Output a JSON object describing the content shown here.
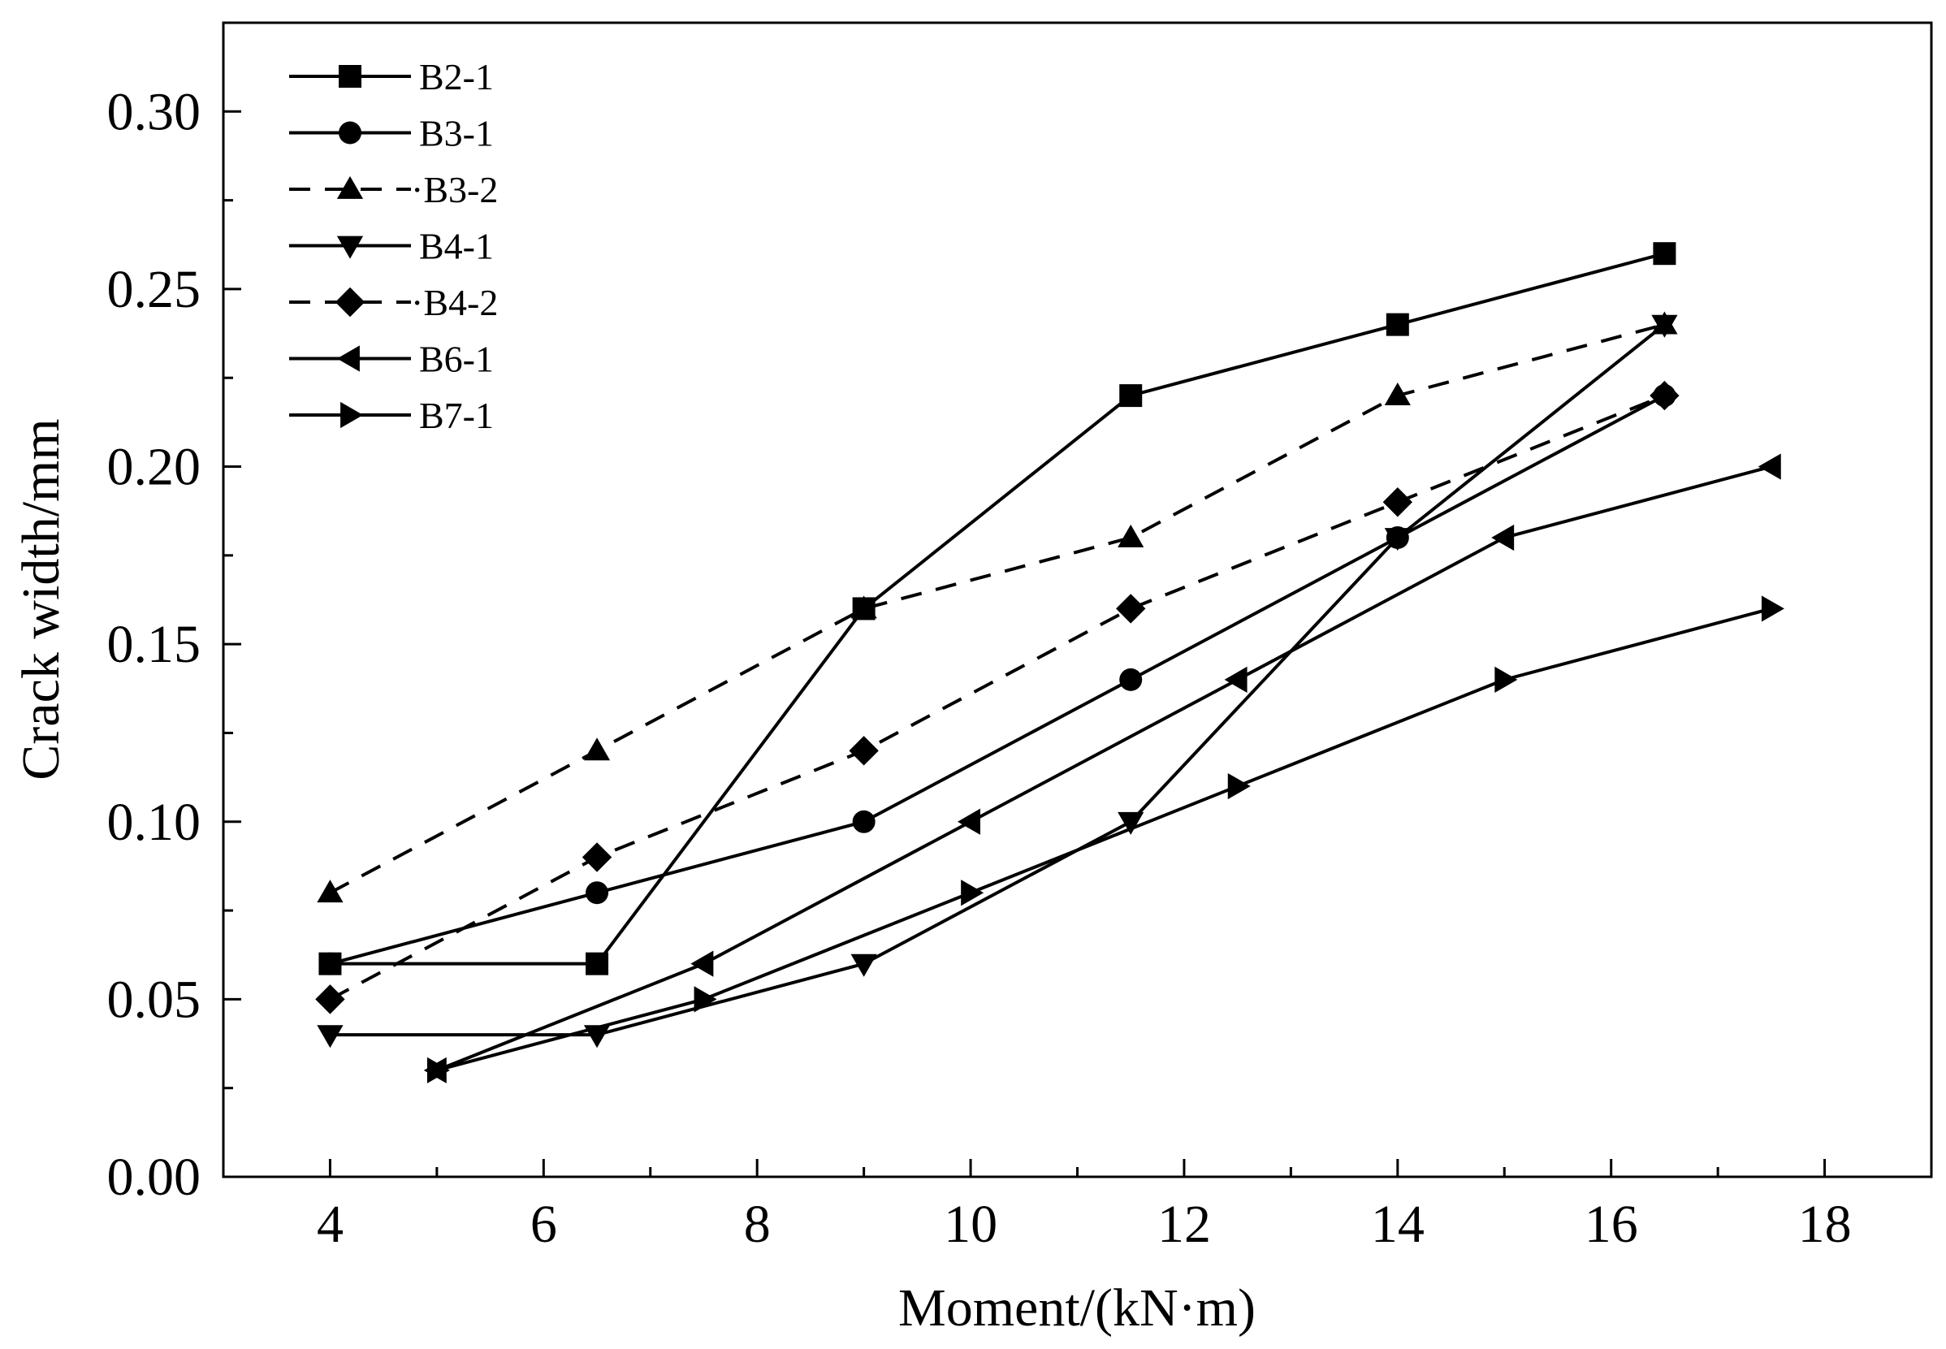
{
  "chart_data": {
    "type": "line",
    "title": "",
    "xlabel": "Moment/(kN·m)",
    "ylabel": "Crack width/mm",
    "xlim": [
      3,
      19
    ],
    "ylim": [
      0,
      0.325
    ],
    "xticks": [
      4,
      6,
      8,
      10,
      12,
      14,
      16,
      18
    ],
    "xtick_labels": [
      "4",
      "6",
      "8",
      "10",
      "12",
      "14",
      "16",
      "18"
    ],
    "yticks": [
      0,
      0.05,
      0.1,
      0.15,
      0.2,
      0.25,
      0.3
    ],
    "ytick_labels": [
      "0.00",
      "0.05",
      "0.10",
      "0.15",
      "0.20",
      "0.25",
      "0.30"
    ],
    "grid": false,
    "legend_position": "top-left",
    "series": [
      {
        "name": "B2-1",
        "marker": "square",
        "dash": "solid",
        "x": [
          4,
          6.5,
          9,
          11.5,
          14,
          16.5
        ],
        "y": [
          0.06,
          0.06,
          0.16,
          0.22,
          0.24,
          0.26
        ]
      },
      {
        "name": "B3-1",
        "marker": "circle",
        "dash": "solid",
        "x": [
          4,
          6.5,
          9,
          11.5,
          14,
          16.5
        ],
        "y": [
          0.06,
          0.08,
          0.1,
          0.14,
          0.18,
          0.22
        ]
      },
      {
        "name": "B3-2",
        "marker": "triangle-up",
        "dash": "dashed",
        "x": [
          4,
          6.5,
          9,
          11.5,
          14,
          16.5
        ],
        "y": [
          0.08,
          0.12,
          0.16,
          0.18,
          0.22,
          0.24
        ]
      },
      {
        "name": "B4-1",
        "marker": "triangle-down",
        "dash": "solid",
        "x": [
          4,
          6.5,
          9,
          11.5,
          14,
          16.5
        ],
        "y": [
          0.04,
          0.04,
          0.06,
          0.1,
          0.18,
          0.24
        ]
      },
      {
        "name": "B4-2",
        "marker": "diamond",
        "dash": "dashed",
        "x": [
          4,
          6.5,
          9,
          11.5,
          14,
          16.5
        ],
        "y": [
          0.05,
          0.09,
          0.12,
          0.16,
          0.19,
          0.22
        ]
      },
      {
        "name": "B6-1",
        "marker": "triangle-left",
        "dash": "solid",
        "x": [
          5,
          7.5,
          10,
          12.5,
          15,
          17.5
        ],
        "y": [
          0.03,
          0.06,
          0.1,
          0.14,
          0.18,
          0.2
        ]
      },
      {
        "name": "B7-1",
        "marker": "triangle-right",
        "dash": "solid",
        "x": [
          5,
          7.5,
          10,
          12.5,
          15,
          17.5
        ],
        "y": [
          0.03,
          0.05,
          0.08,
          0.11,
          0.14,
          0.16
        ]
      }
    ]
  }
}
